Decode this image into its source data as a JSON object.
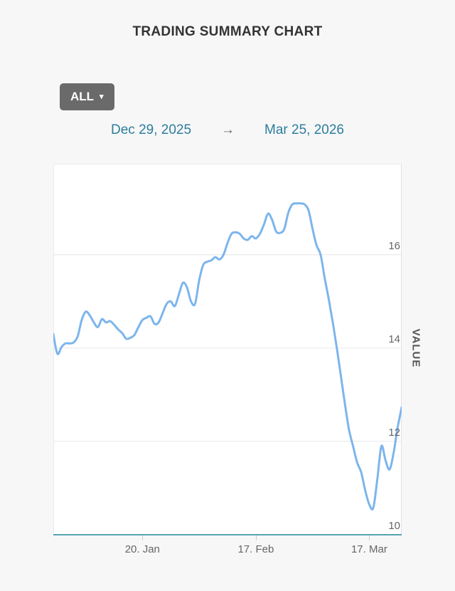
{
  "header": {
    "title": "TRADING SUMMARY CHART"
  },
  "controls": {
    "range_dropdown": {
      "label": "ALL",
      "caret_glyph": "▾"
    },
    "date_from": "Dec 29, 2025",
    "arrow_glyph": "→",
    "date_to": "Mar 25, 2026"
  },
  "colors": {
    "page_background": "#f7f7f8",
    "button_background": "#6a6a6a",
    "date_link": "#2d7e9c",
    "axis_label": "#666666"
  },
  "chart_data": {
    "type": "line",
    "title": "TRADING SUMMARY CHART",
    "xlabel": "",
    "ylabel": "VALUE",
    "x_start_date": "Dec 29, 2025",
    "x_end_date": "Mar 25, 2026",
    "x_total_days": 86,
    "x_tick_labels": [
      "20. Jan",
      "17. Feb",
      "17. Mar"
    ],
    "x_tick_days": [
      22,
      50,
      78
    ],
    "y_ticks": [
      10,
      12,
      14,
      16
    ],
    "ylim": [
      10,
      17.95
    ],
    "grid": true,
    "grid_color": "#e6e6e6",
    "line_color": "#7cb5ec",
    "axis_line_color": "#57a4b2",
    "legend": "none",
    "series": [
      {
        "name": "VALUE",
        "values": [
          14.3,
          13.88,
          14.02,
          14.1,
          14.1,
          14.12,
          14.25,
          14.6,
          14.78,
          14.7,
          14.55,
          14.45,
          14.62,
          14.55,
          14.58,
          14.5,
          14.4,
          14.32,
          14.2,
          14.22,
          14.28,
          14.45,
          14.6,
          14.65,
          14.68,
          14.52,
          14.55,
          14.75,
          14.95,
          15.0,
          14.9,
          15.15,
          15.4,
          15.3,
          15.0,
          14.95,
          15.45,
          15.78,
          15.85,
          15.88,
          15.95,
          15.9,
          16.0,
          16.25,
          16.45,
          16.48,
          16.45,
          16.35,
          16.32,
          16.4,
          16.35,
          16.45,
          16.65,
          16.88,
          16.75,
          16.5,
          16.47,
          16.55,
          16.9,
          17.08,
          17.1,
          17.1,
          17.08,
          16.95,
          16.55,
          16.2,
          16.0,
          15.5,
          15.05,
          14.55,
          14.0,
          13.4,
          12.8,
          12.25,
          11.9,
          11.55,
          11.34,
          10.95,
          10.65,
          10.58,
          11.2,
          11.9,
          11.6,
          11.4,
          11.75,
          12.3,
          12.73
        ]
      }
    ]
  }
}
